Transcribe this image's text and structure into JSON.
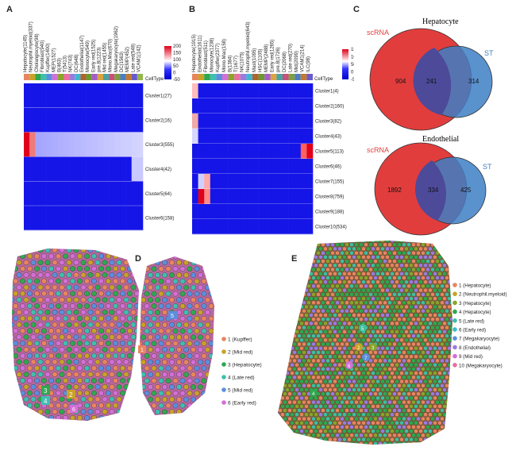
{
  "panels": {
    "A": {
      "label": "A",
      "celltype_label": "CellType",
      "columns": [
        "Hepatocyte(1145)",
        "Neutrophil.myeloid(337)",
        "Cholangiocyte(98)",
        "Fibroblast(940)",
        "Kupffer(1400)",
        "MEP(1527)",
        "B(463)",
        "T(5413)",
        "NK(743)",
        "DC(648)",
        "Endothelial(1147)",
        "Monocyte(549)",
        "Early red(1525)",
        "pre.B(1223)",
        "Mid red(1455)",
        "Mono.Mac(670)",
        "Megakaryocyte(1962)",
        "DC(1563)",
        "MEMP(452)",
        "Late red(548)",
        "VCAM1(142)"
      ],
      "rows": [
        "Cluster1(27)",
        "Cluster2(16)",
        "Cluster3(555)",
        "Cluster4(42)",
        "Cluster5(64)",
        "Cluster6(158)"
      ],
      "scale_ticks": [
        "200",
        "150",
        "100",
        "50",
        "0",
        "-50"
      ]
    },
    "B": {
      "label": "B",
      "celltype_label": "CellType",
      "columns": [
        "Hepatocyte(1915)",
        "Endothelial(1611)",
        "Fibroblast(511)",
        "Monocyte(1238)",
        "Kupffer(2377)",
        "Mono.Mac(158)",
        "B(1384)",
        "T(1677)",
        "NK(1075)",
        "Neutrophil.myeloid(643)",
        "Mast(1095)",
        "HSC(1105)",
        "MEMP(2488)",
        "Early red(1265)",
        "pre.B(1726)",
        "DC(2068)",
        "Late red(270)",
        "Mid(2099)",
        "VCAM1(214)",
        "ILC(98)"
      ],
      "rows": [
        "Cluster1(4)",
        "Cluster2(160)",
        "Cluster3(82)",
        "Cluster4(43)",
        "Cluster5(113)",
        "Cluster6(46)",
        "Cluster7(155)",
        "Cluster8(759)",
        "Cluster9(188)",
        "Cluster10(534)"
      ],
      "scale_ticks": [
        "150",
        "100",
        "50",
        "0",
        "-50"
      ]
    },
    "C": {
      "label": "C",
      "venns": [
        {
          "title": "Hepatocyte",
          "left_label": "scRNA",
          "right_label": "ST",
          "left_only": "904",
          "overlap": "241",
          "right_only": "314"
        },
        {
          "title": "Endothelial",
          "left_label": "scRNA",
          "right_label": "ST",
          "left_only": "1892",
          "overlap": "334",
          "right_only": "425"
        }
      ]
    },
    "D": {
      "label": "D",
      "legend": [
        {
          "text": "1 (Kupffer)",
          "color": "#e8855f"
        },
        {
          "text": "2 (Mid red)",
          "color": "#c9a227"
        },
        {
          "text": "3 (Hepatocyte)",
          "color": "#2fa84f"
        },
        {
          "text": "4 (Late red)",
          "color": "#3fbfb0"
        },
        {
          "text": "5 (Mid red)",
          "color": "#5b8fdc"
        },
        {
          "text": "6 (Early red)",
          "color": "#d46fd8"
        }
      ],
      "spot_labels": [
        "1",
        "2",
        "3",
        "4",
        "5",
        "6"
      ]
    },
    "E": {
      "label": "E",
      "legend": [
        {
          "text": "1 (Hepatocyte)",
          "color": "#e8855f"
        },
        {
          "text": "2 (Neutrophil.myeloid)",
          "color": "#c9a227"
        },
        {
          "text": "3 (Hepatocyte)",
          "color": "#8aa52a"
        },
        {
          "text": "4 (Hepatocyte)",
          "color": "#2fa84f"
        },
        {
          "text": "5 (Late red)",
          "color": "#3fbfa0"
        },
        {
          "text": "6 (Early red)",
          "color": "#3fb8cf"
        },
        {
          "text": "7 (Megakaryocyte)",
          "color": "#5b8fdc"
        },
        {
          "text": "8 (Endothelial)",
          "color": "#9b7be0"
        },
        {
          "text": "9 (Mid red)",
          "color": "#d46fd8"
        },
        {
          "text": "10 (Megakaryocyte)",
          "color": "#e86f9e"
        }
      ],
      "spot_labels": [
        "5",
        "2",
        "3",
        "7",
        "6",
        "4"
      ]
    }
  }
}
